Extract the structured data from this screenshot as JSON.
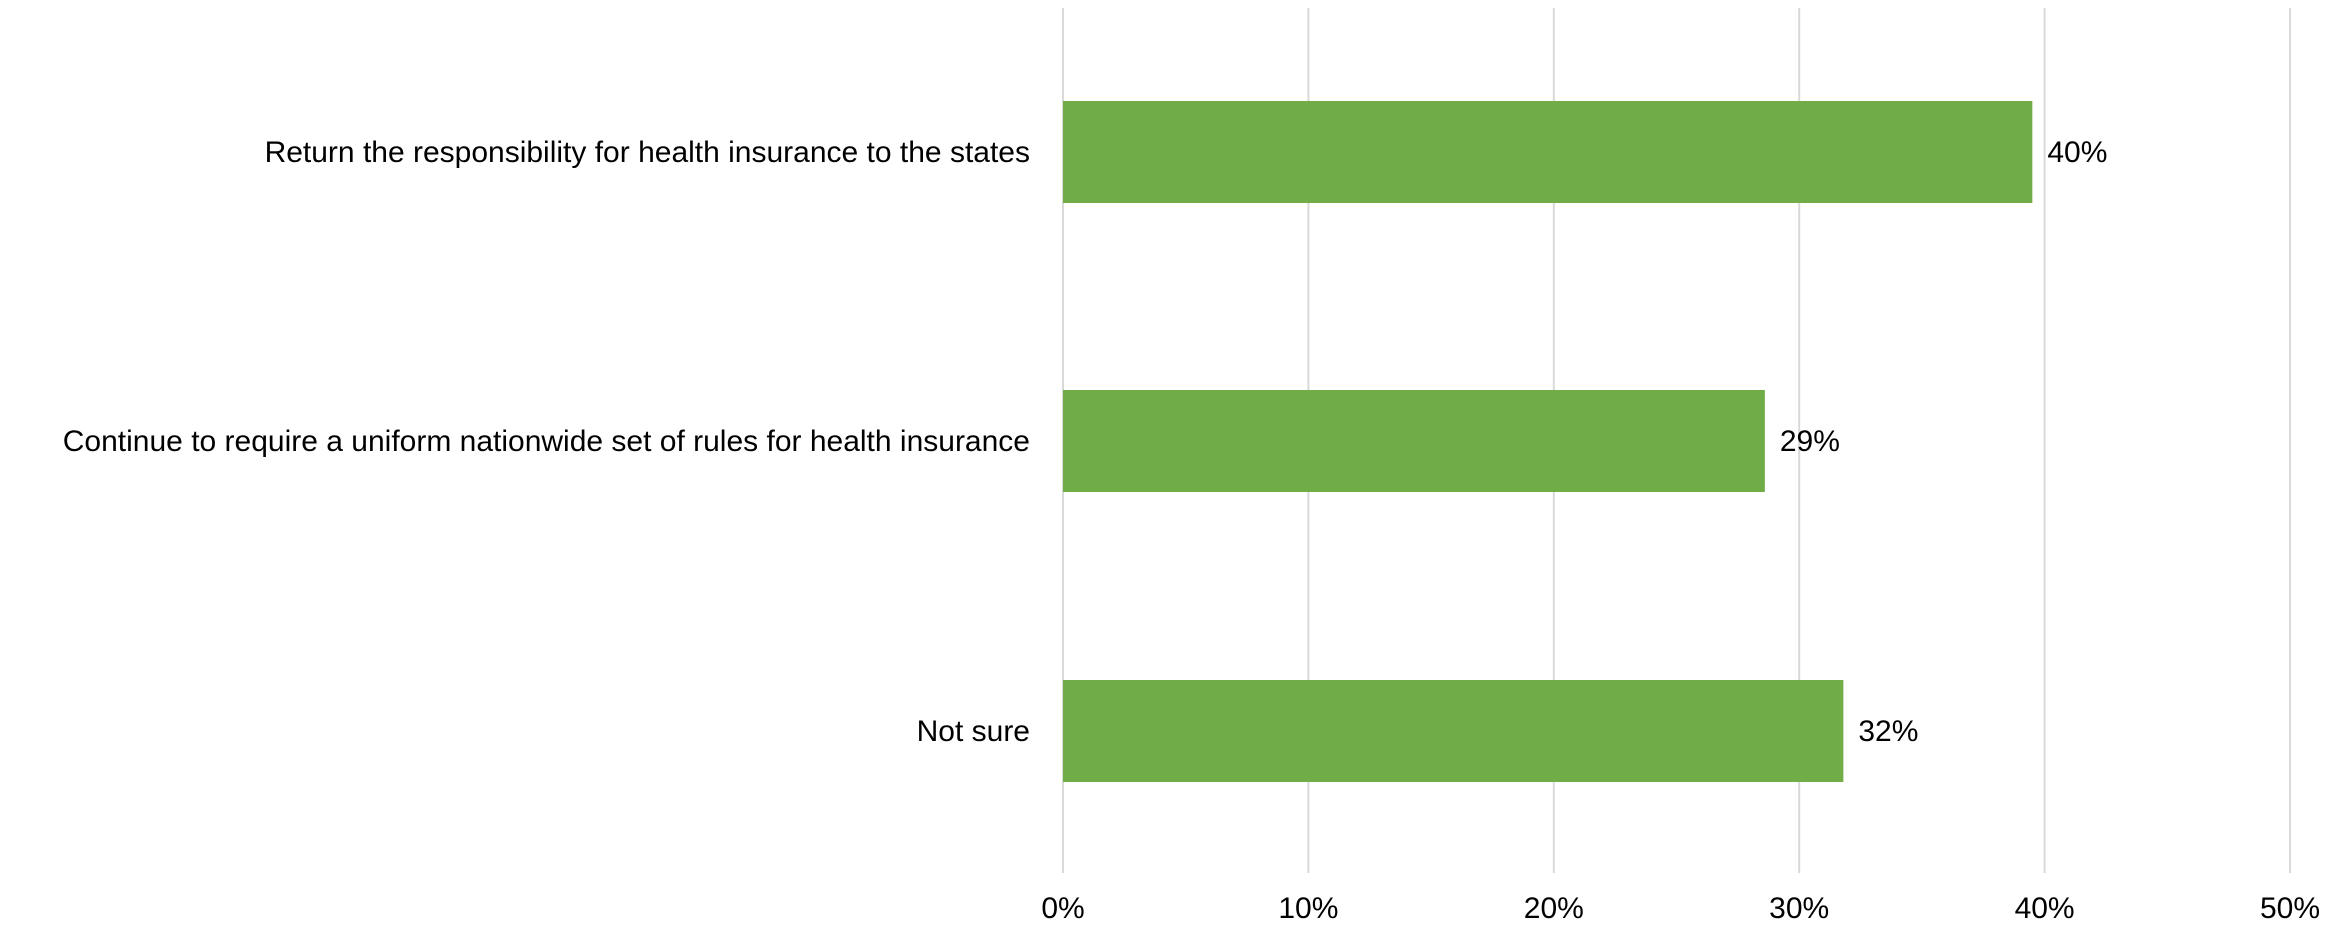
{
  "chart_data": {
    "type": "bar",
    "orientation": "horizontal",
    "categories": [
      "Return the responsibility for health insurance to the states",
      "Continue to require a uniform nationwide set of rules for health insurance",
      "Not sure"
    ],
    "values": [
      39.5,
      28.6,
      31.8
    ],
    "data_labels": [
      "40%",
      "29%",
      "32%"
    ],
    "xlim": [
      0,
      50
    ],
    "x_ticks": [
      0,
      10,
      20,
      30,
      40,
      50
    ],
    "x_tick_labels": [
      "0%",
      "10%",
      "20%",
      "30%",
      "40%",
      "50%"
    ],
    "title": "",
    "xlabel": "",
    "ylabel": "",
    "grid": true,
    "legend": "none",
    "colors": {
      "bar": "#70AD47",
      "grid": "#D9D9D9",
      "text": "#000000"
    }
  }
}
